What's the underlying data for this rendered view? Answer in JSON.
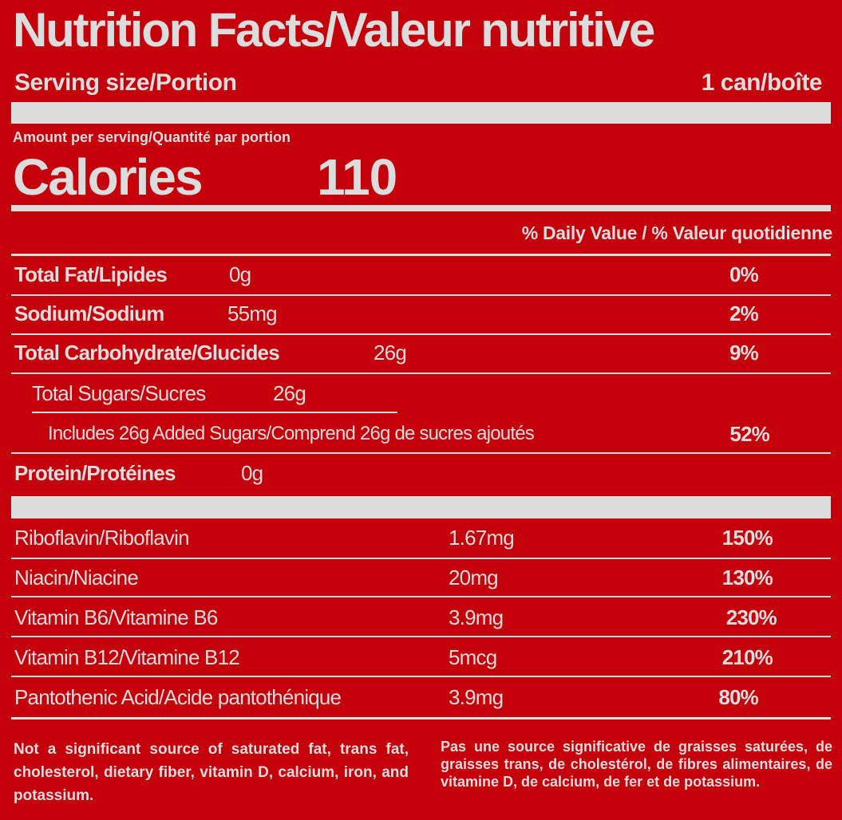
{
  "title": "Nutrition Facts/Valeur nutritive",
  "serving": {
    "label": "Serving size/Portion",
    "value": "1 can/boîte"
  },
  "amount_per_serving": "Amount per serving/Quantité par portion",
  "calories": {
    "label": "Calories",
    "value": "110"
  },
  "daily_value_header": "% Daily Value / % Valeur quotidienne",
  "nutrients": [
    {
      "name": "Total Fat/Lipides",
      "amount": "0g",
      "dv": "0%"
    },
    {
      "name": "Sodium/Sodium",
      "amount": "55mg",
      "dv": "2%"
    },
    {
      "name": "Total Carbohydrate/Glucides",
      "amount": "26g",
      "dv": "9%"
    },
    {
      "name": "Total Sugars/Sucres",
      "amount": "26g"
    },
    {
      "name": "Includes 26g Added Sugars/Comprend 26g de sucres ajoutés",
      "dv": "52%"
    },
    {
      "name": "Protein/Protéines",
      "amount": "0g"
    }
  ],
  "vitamins": [
    {
      "name": "Riboflavin/Riboflavin",
      "amount": "1.67mg",
      "dv": "150%"
    },
    {
      "name": "Niacin/Niacine",
      "amount": "20mg",
      "dv": "130%"
    },
    {
      "name": "Vitamin B6/Vitamine B6",
      "amount": "3.9mg",
      "dv": "230%"
    },
    {
      "name": "Vitamin B12/Vitamine B12",
      "amount": "5mcg",
      "dv": "210%"
    },
    {
      "name": "Pantothenic Acid/Acide pantothénique",
      "amount": "3.9mg",
      "dv": "80%"
    }
  ],
  "footnote": {
    "en": "Not a significant source of saturated fat, trans fat, cholesterol, dietary fiber, vitamin D, calcium, iron, and potassium.",
    "fr": "Pas une source significative de graisses saturées, de graisses trans, de cholestérol, de fibres alimentaires, de vitamine D, de calcium, de fer et de potassium."
  }
}
